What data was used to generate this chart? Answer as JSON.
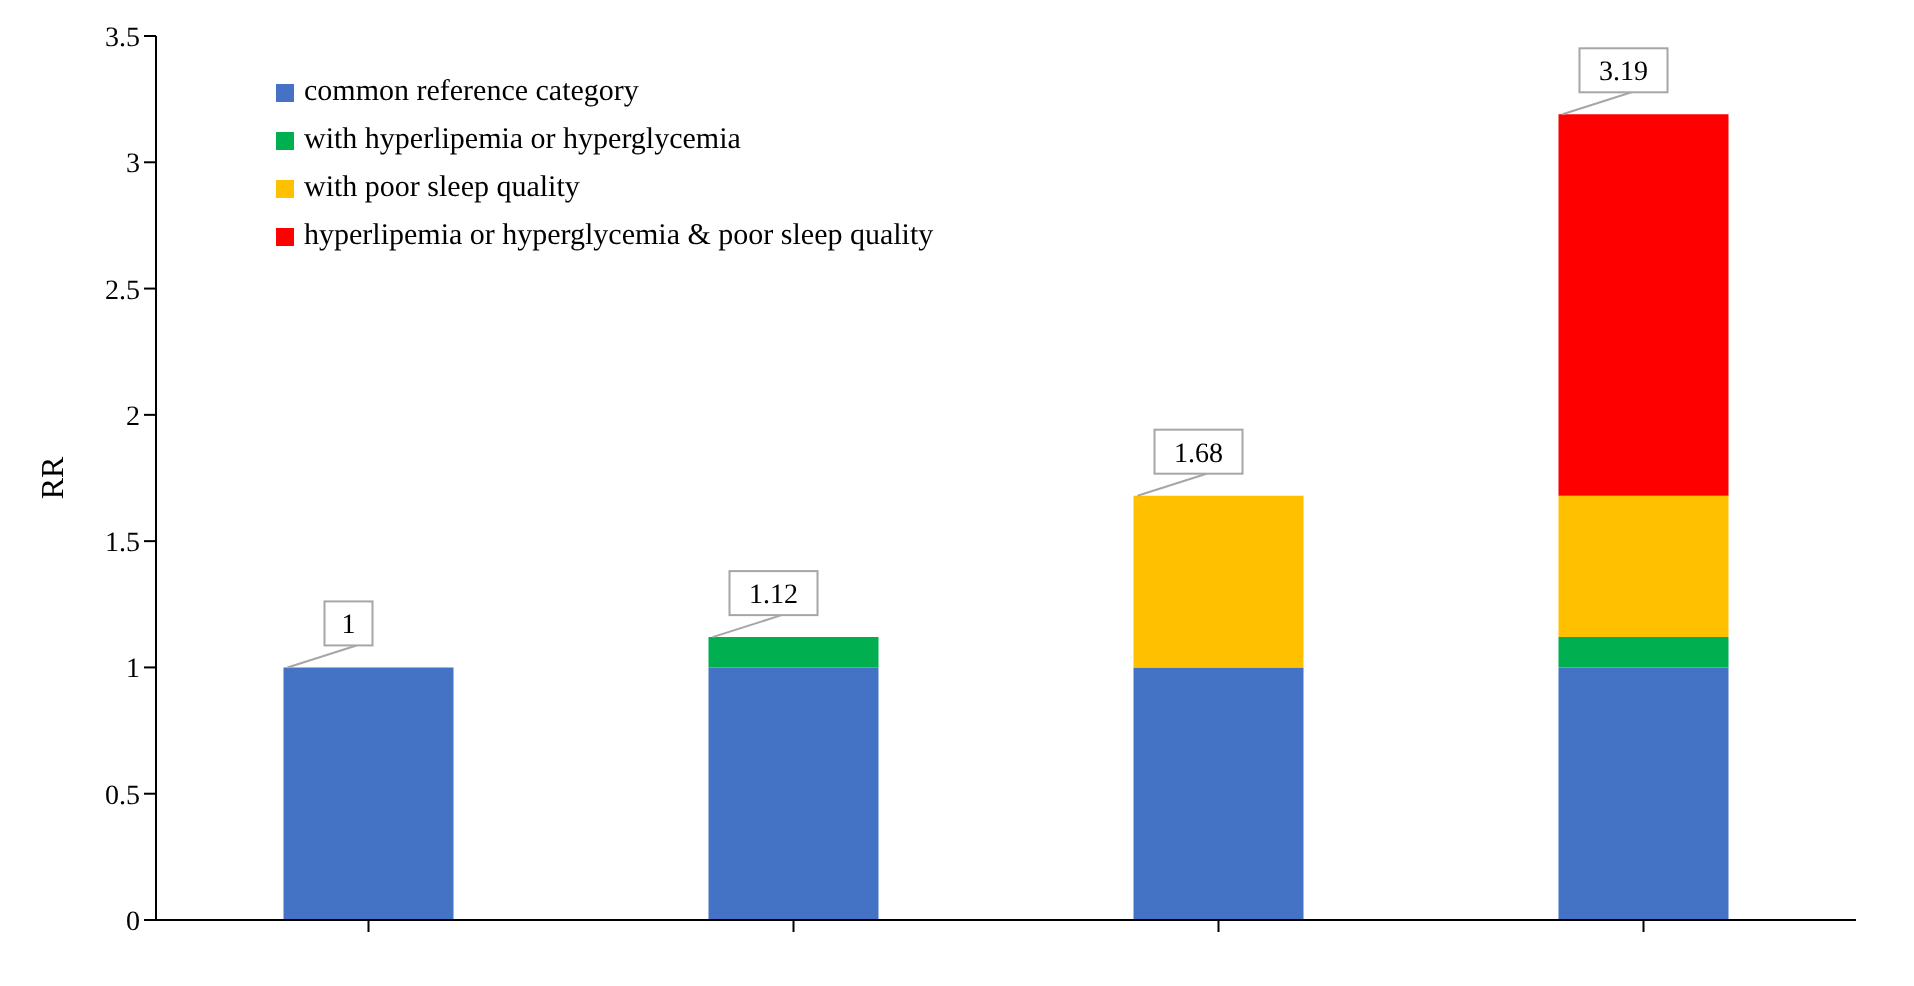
{
  "chart_data": {
    "type": "bar",
    "stacked": true,
    "ylabel": "RR",
    "categories": [
      null,
      null,
      null,
      null
    ],
    "series": [
      {
        "name": "common reference category",
        "color": "#4472c4",
        "values": [
          1,
          1,
          1,
          1
        ]
      },
      {
        "name": "with hyperlipemia or hyperglycemia",
        "color": "#00b050",
        "values": [
          null,
          0.12,
          null,
          0.12
        ]
      },
      {
        "name": "with poor sleep quality",
        "color": "#ffc000",
        "values": [
          null,
          null,
          0.68,
          0.56
        ]
      },
      {
        "name": "hyperlipemia or hyperglycemia & poor sleep quality",
        "color": "#ff0000",
        "values": [
          null,
          null,
          null,
          1.51
        ]
      }
    ],
    "totals": [
      "1",
      "1.12",
      "1.68",
      "3.19"
    ],
    "ylim": [
      0,
      3.5
    ],
    "yticks": [
      0,
      0.5,
      1,
      1.5,
      2,
      2.5,
      3,
      3.5
    ],
    "grid": false,
    "legend": "top left"
  }
}
